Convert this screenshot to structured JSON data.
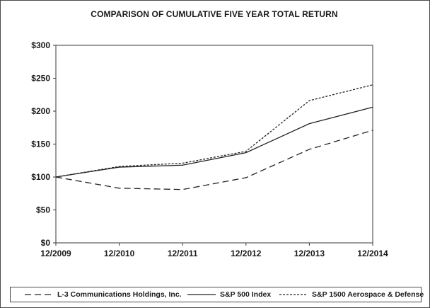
{
  "chart_data": {
    "type": "line",
    "title": "COMPARISON OF CUMULATIVE FIVE YEAR TOTAL RETURN",
    "xlabel": "",
    "ylabel": "",
    "categories": [
      "12/2009",
      "12/2010",
      "12/2011",
      "12/2012",
      "12/2013",
      "12/2014"
    ],
    "ylim": [
      0,
      300
    ],
    "yticks": [
      0,
      50,
      100,
      150,
      200,
      250,
      300
    ],
    "ytick_labels": [
      "$0",
      "$50",
      "$100",
      "$150",
      "$200",
      "$250",
      "$300"
    ],
    "grid": false,
    "legend_position": "bottom",
    "series": [
      {
        "name": "L-3 Communications Holdings, Inc.",
        "style": "long-dash",
        "color": "#222222",
        "values": [
          100,
          83,
          81,
          99,
          142,
          171
        ]
      },
      {
        "name": "S&P 500 Index",
        "style": "solid",
        "color": "#222222",
        "values": [
          100,
          115,
          118,
          137,
          181,
          206
        ]
      },
      {
        "name": "S&P 1500 Aerospace & Defense",
        "style": "short-dash",
        "color": "#222222",
        "values": [
          100,
          116,
          121,
          139,
          216,
          240
        ]
      }
    ]
  }
}
